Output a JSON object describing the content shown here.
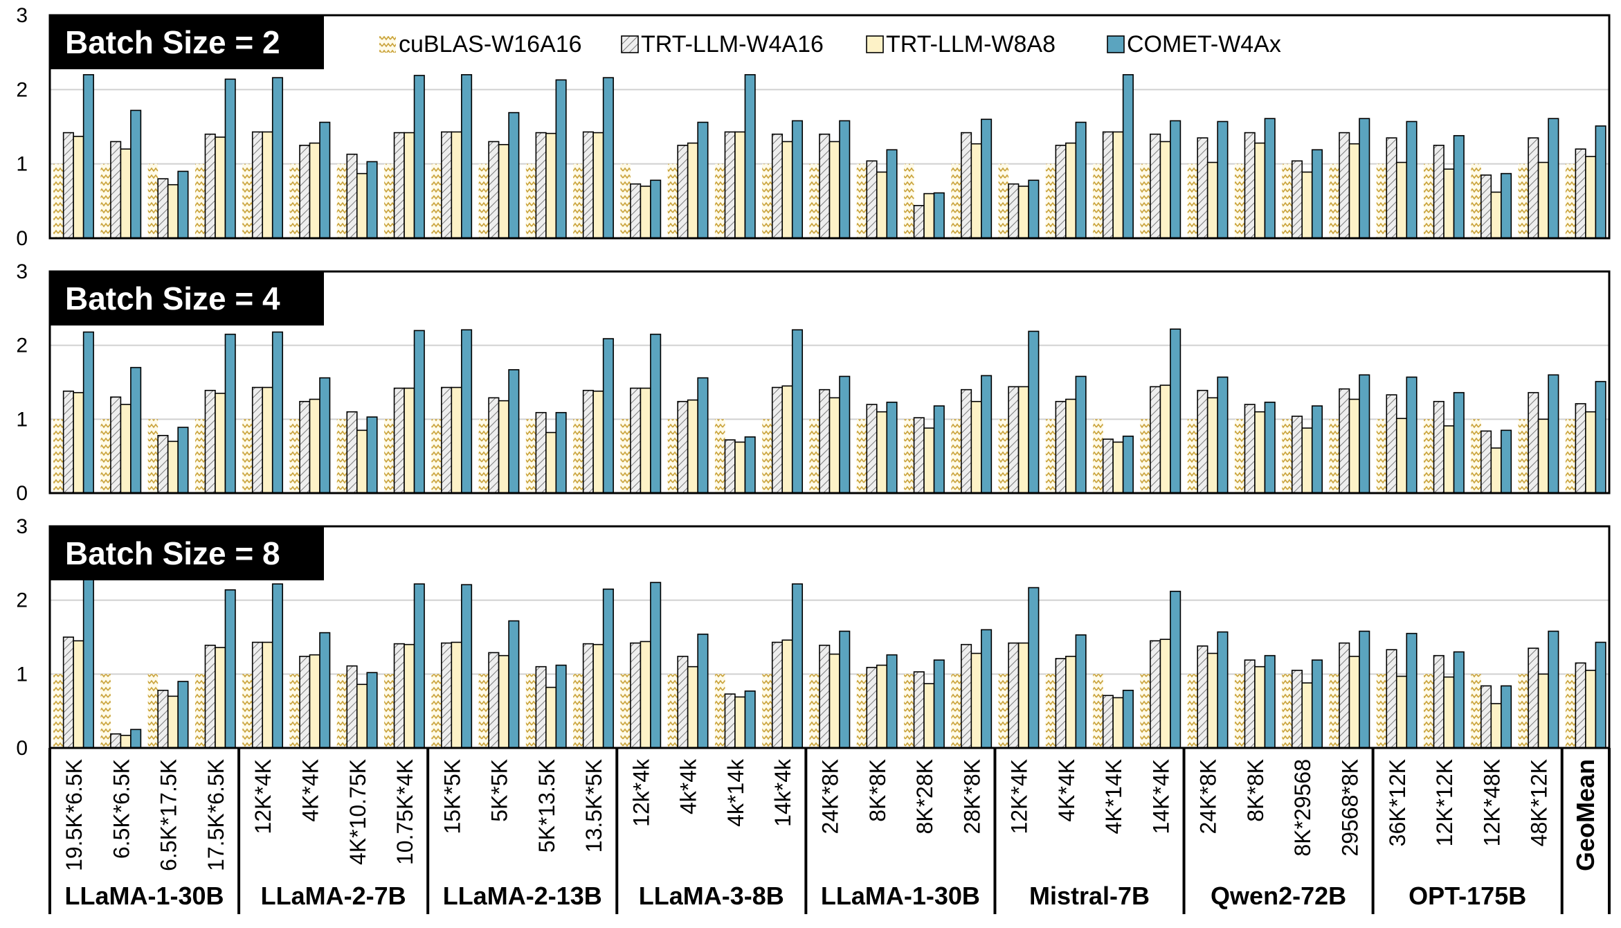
{
  "legend": [
    {
      "name": "cuBLAS-W16A16",
      "color": "#fdf5d6",
      "pattern": "zigzag-gold"
    },
    {
      "name": "TRT-LLM-W4A16",
      "color": "#e8e8e8",
      "pattern": "diagonal-hatch"
    },
    {
      "name": "TRT-LLM-W8A8",
      "color": "#fdf2c7",
      "pattern": "solid"
    },
    {
      "name": "COMET-W4Ax",
      "color": "#5aa6c2",
      "pattern": "solid"
    }
  ],
  "colors": {
    "cublas_zigzag": "#c9a23a",
    "trt_w4a16_fill": "#e9e9e9",
    "trt_w8a8_fill": "#fdf2c7",
    "comet_fill": "#5ba4bf",
    "gridline": "#d0d0d0",
    "panel_label_bg": "#000000",
    "panel_label_text": "#ffffff"
  },
  "chart_data": [
    {
      "type": "bar",
      "title": "Batch Size = 2",
      "ylim": [
        0,
        3
      ],
      "yticks": [
        0,
        1,
        2,
        3
      ],
      "grid": true,
      "legend_position": "top",
      "categories": [
        "19.5K*6.5K",
        "6.5K*6.5K",
        "6.5K*17.5K",
        "17.5K*6.5K",
        "12K*4K",
        "4K*4K",
        "4K*10.75K",
        "10.75K*4K",
        "15K*5K",
        "5K*5K",
        "5K*13.5K",
        "13.5K*5K",
        "12k*4k",
        "4k*4k",
        "4k*14k",
        "14k*4k",
        "24K*8K",
        "8K*8K",
        "8K*28K",
        "28K*8K",
        "12K*4K",
        "4K*4K",
        "4K*14K",
        "14K*4K",
        "24K*8K",
        "8K*8K",
        "8K*29568",
        "29568*8K",
        "36K*12K",
        "12K*12K",
        "12K*48K",
        "48K*12K",
        "GeoMean"
      ],
      "series": [
        {
          "name": "cuBLAS-W16A16",
          "values": [
            1,
            1,
            1,
            1,
            1,
            1,
            1,
            1,
            1,
            1,
            1,
            1,
            1,
            1,
            1,
            1,
            1,
            1,
            1,
            1,
            1,
            1,
            1,
            1,
            1,
            1,
            1,
            1,
            1,
            1,
            1,
            1,
            1
          ]
        },
        {
          "name": "TRT-LLM-W4A16",
          "values": [
            1.42,
            1.3,
            0.8,
            1.4,
            1.43,
            1.25,
            1.13,
            1.42,
            1.43,
            1.3,
            1.42,
            1.43,
            0.73,
            1.25,
            1.43,
            1.4,
            1.4,
            1.04,
            0.44,
            1.42,
            0.73,
            1.25,
            1.43,
            1.4,
            1.35,
            1.42,
            1.04,
            1.42,
            1.35,
            1.25,
            0.85,
            1.35,
            1.2
          ]
        },
        {
          "name": "TRT-LLM-W8A8",
          "values": [
            1.37,
            1.2,
            0.72,
            1.36,
            1.43,
            1.28,
            0.87,
            1.42,
            1.43,
            1.26,
            1.41,
            1.42,
            0.7,
            1.28,
            1.43,
            1.3,
            1.3,
            0.89,
            0.6,
            1.27,
            0.7,
            1.28,
            1.43,
            1.3,
            1.02,
            1.28,
            0.89,
            1.27,
            1.02,
            0.93,
            0.62,
            1.02,
            1.1
          ]
        },
        {
          "name": "COMET-W4Ax",
          "values": [
            2.2,
            1.72,
            0.9,
            2.14,
            2.16,
            1.56,
            1.03,
            2.19,
            2.2,
            1.69,
            2.13,
            2.16,
            0.78,
            1.56,
            2.2,
            1.58,
            1.58,
            1.19,
            0.61,
            1.6,
            0.78,
            1.56,
            2.2,
            1.58,
            1.57,
            1.61,
            1.19,
            1.61,
            1.57,
            1.38,
            0.87,
            1.61,
            1.51
          ]
        }
      ]
    },
    {
      "type": "bar",
      "title": "Batch Size = 4",
      "ylim": [
        0,
        3
      ],
      "yticks": [
        0,
        1,
        2,
        3
      ],
      "grid": true,
      "categories": [
        "19.5K*6.5K",
        "6.5K*6.5K",
        "6.5K*17.5K",
        "17.5K*6.5K",
        "12K*4K",
        "4K*4K",
        "4K*10.75K",
        "10.75K*4K",
        "15K*5K",
        "5K*5K",
        "5K*13.5K",
        "13.5K*5K",
        "12k*4k",
        "4k*4k",
        "4k*14k",
        "14k*4k",
        "24K*8K",
        "8K*8K",
        "8K*28K",
        "28K*8K",
        "12K*4K",
        "4K*4K",
        "4K*14K",
        "14K*4K",
        "24K*8K",
        "8K*8K",
        "8K*29568",
        "29568*8K",
        "36K*12K",
        "12K*12K",
        "12K*48K",
        "48K*12K",
        "GeoMean"
      ],
      "series": [
        {
          "name": "cuBLAS-W16A16",
          "values": [
            1,
            1,
            1,
            1,
            1,
            1,
            1,
            1,
            1,
            1,
            1,
            1,
            1,
            1,
            1,
            1,
            1,
            1,
            1,
            1,
            1,
            1,
            1,
            1,
            1,
            1,
            1,
            1,
            1,
            1,
            1,
            1,
            1
          ]
        },
        {
          "name": "TRT-LLM-W4A16",
          "values": [
            1.38,
            1.3,
            0.78,
            1.39,
            1.43,
            1.24,
            1.1,
            1.42,
            1.43,
            1.29,
            1.09,
            1.39,
            1.42,
            1.24,
            0.72,
            1.43,
            1.4,
            1.2,
            1.02,
            1.4,
            1.44,
            1.24,
            0.73,
            1.44,
            1.39,
            1.2,
            1.04,
            1.41,
            1.33,
            1.24,
            0.84,
            1.36,
            1.21
          ]
        },
        {
          "name": "TRT-LLM-W8A8",
          "values": [
            1.36,
            1.2,
            0.7,
            1.35,
            1.43,
            1.27,
            0.85,
            1.42,
            1.43,
            1.25,
            0.82,
            1.38,
            1.42,
            1.26,
            0.69,
            1.45,
            1.29,
            1.1,
            0.88,
            1.24,
            1.44,
            1.27,
            0.69,
            1.46,
            1.29,
            1.1,
            0.88,
            1.27,
            1.01,
            0.91,
            0.61,
            1.0,
            1.1
          ]
        },
        {
          "name": "COMET-W4Ax",
          "values": [
            2.18,
            1.7,
            0.89,
            2.15,
            2.18,
            1.56,
            1.03,
            2.2,
            2.21,
            1.67,
            1.09,
            2.09,
            2.15,
            1.56,
            0.76,
            2.21,
            1.58,
            1.23,
            1.18,
            1.59,
            2.19,
            1.58,
            0.77,
            2.22,
            1.57,
            1.23,
            1.18,
            1.6,
            1.57,
            1.36,
            0.85,
            1.6,
            1.51
          ]
        }
      ]
    },
    {
      "type": "bar",
      "title": "Batch Size = 8",
      "ylim": [
        0,
        3
      ],
      "yticks": [
        0,
        1,
        2,
        3
      ],
      "grid": true,
      "categories": [
        "19.5K*6.5K",
        "6.5K*6.5K",
        "6.5K*17.5K",
        "17.5K*6.5K",
        "12K*4K",
        "4K*4K",
        "4K*10.75K",
        "10.75K*4K",
        "15K*5K",
        "5K*5K",
        "5K*13.5K",
        "13.5K*5K",
        "12k*4k",
        "4k*4k",
        "4k*14k",
        "14k*4k",
        "24K*8K",
        "8K*8K",
        "8K*28K",
        "28K*8K",
        "12K*4K",
        "4K*4K",
        "4K*14K",
        "14K*4K",
        "24K*8K",
        "8K*8K",
        "8K*29568",
        "29568*8K",
        "36K*12K",
        "12K*12K",
        "12K*48K",
        "48K*12K",
        "GeoMean"
      ],
      "series": [
        {
          "name": "cuBLAS-W16A16",
          "values": [
            1,
            1,
            1,
            1,
            1,
            1,
            1,
            1,
            1,
            1,
            1,
            1,
            1,
            1,
            1,
            1,
            1,
            1,
            1,
            1,
            1,
            1,
            1,
            1,
            1,
            1,
            1,
            1,
            1,
            1,
            1,
            1,
            1
          ]
        },
        {
          "name": "TRT-LLM-W4A16",
          "values": [
            1.5,
            0.19,
            0.78,
            1.39,
            1.43,
            1.24,
            1.11,
            1.41,
            1.42,
            1.29,
            1.1,
            1.41,
            1.42,
            1.24,
            0.73,
            1.43,
            1.39,
            1.09,
            1.03,
            1.4,
            1.42,
            1.21,
            0.71,
            1.45,
            1.38,
            1.19,
            1.05,
            1.42,
            1.33,
            1.25,
            0.84,
            1.35,
            1.15
          ]
        },
        {
          "name": "TRT-LLM-W8A8",
          "values": [
            1.45,
            0.17,
            0.7,
            1.36,
            1.43,
            1.26,
            0.86,
            1.4,
            1.43,
            1.25,
            0.82,
            1.4,
            1.44,
            1.1,
            0.69,
            1.46,
            1.27,
            1.12,
            0.87,
            1.28,
            1.42,
            1.24,
            0.68,
            1.47,
            1.28,
            1.1,
            0.88,
            1.24,
            0.97,
            0.96,
            0.6,
            1.0,
            1.05
          ]
        },
        {
          "name": "COMET-W4Ax",
          "values": [
            2.35,
            0.25,
            0.9,
            2.14,
            2.22,
            1.56,
            1.02,
            2.22,
            2.21,
            1.72,
            1.12,
            2.15,
            2.24,
            1.54,
            0.77,
            2.22,
            1.58,
            1.26,
            1.19,
            1.6,
            2.17,
            1.53,
            0.78,
            2.12,
            1.57,
            1.25,
            1.19,
            1.58,
            1.55,
            1.3,
            0.84,
            1.58,
            1.43
          ]
        }
      ]
    }
  ],
  "model_groups": [
    {
      "label": "LLaMA-1-30B",
      "count": 4
    },
    {
      "label": "LLaMA-2-7B",
      "count": 4
    },
    {
      "label": "LLaMA-2-13B",
      "count": 4
    },
    {
      "label": "LLaMA-3-8B",
      "count": 4
    },
    {
      "label": "LLaMA-1-30B",
      "count": 4
    },
    {
      "label": "Mistral-7B",
      "count": 4
    },
    {
      "label": "Qwen2-72B",
      "count": 4
    },
    {
      "label": "OPT-175B",
      "count": 4
    },
    {
      "label": "",
      "count": 1
    }
  ]
}
